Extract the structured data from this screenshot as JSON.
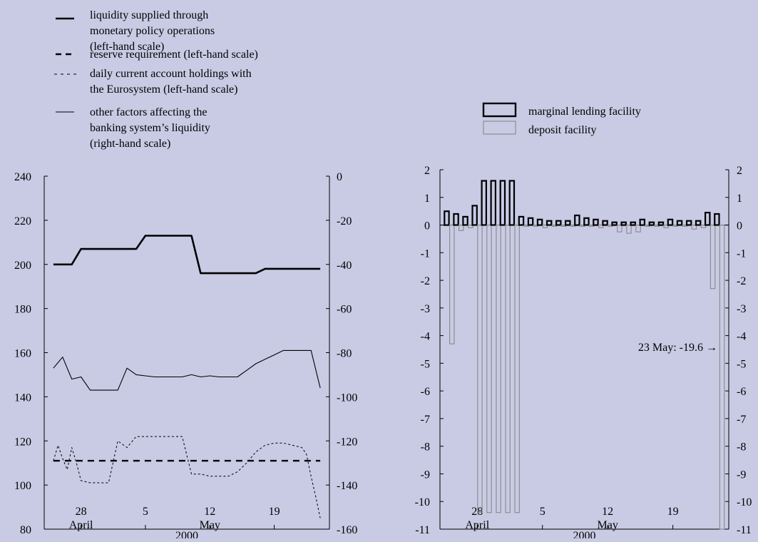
{
  "chart_data": [
    {
      "type": "line",
      "title": "",
      "legend_placement": "top-left",
      "grid": false,
      "x_axis": {
        "ticks": [
          {
            "day": 28,
            "label": "28"
          },
          {
            "day": 35,
            "label": "5"
          },
          {
            "day": 42,
            "label": "12"
          },
          {
            "day": 49,
            "label": "19"
          }
        ],
        "month_labels": [
          {
            "day": 28,
            "label": "April"
          },
          {
            "day": 42,
            "label": "May"
          }
        ],
        "year_label": "2000",
        "xlim": [
          24,
          55
        ]
      },
      "left_axis": {
        "ylim": [
          80,
          240
        ],
        "ticks": [
          240,
          220,
          200,
          180,
          160,
          140,
          120,
          100,
          80
        ]
      },
      "right_axis": {
        "ylim": [
          -160,
          0
        ],
        "ticks": [
          0,
          -20,
          -40,
          -60,
          -80,
          -100,
          -120,
          -140,
          -160
        ]
      },
      "series": [
        {
          "name": "liquidity supplied through monetary policy operations (left-hand scale)",
          "style": "thick",
          "axis": "left",
          "x": [
            25,
            26,
            27,
            28,
            29,
            30,
            31,
            32,
            33,
            34,
            35,
            36,
            37,
            38,
            39,
            40,
            41,
            42,
            43,
            44,
            45,
            46,
            47,
            48,
            49,
            50,
            51,
            52,
            53,
            54
          ],
          "y": [
            200,
            200,
            200,
            207,
            207,
            207,
            207,
            207,
            207,
            207,
            213,
            213,
            213,
            213,
            213,
            213,
            196,
            196,
            196,
            196,
            196,
            196,
            196,
            198,
            198,
            198,
            198,
            198,
            198,
            198
          ]
        },
        {
          "name": "reserve requirement (left-hand scale)",
          "style": "dashed",
          "axis": "left",
          "x": [
            25,
            54
          ],
          "y": [
            111,
            111
          ]
        },
        {
          "name": "daily current account holdings with the Eurosystem (left-hand scale)",
          "style": "dotted",
          "axis": "left",
          "x": [
            25,
            25.5,
            26,
            26.5,
            27,
            27.5,
            28,
            29,
            30,
            31,
            32,
            33,
            34,
            35,
            36,
            37,
            38,
            39,
            40,
            41,
            42,
            43,
            44,
            45,
            46,
            47,
            48,
            49,
            50,
            51,
            52,
            52.5,
            53,
            53.5,
            54
          ],
          "y": [
            111,
            118,
            112,
            107,
            117,
            110,
            102,
            101,
            101,
            101,
            120,
            117,
            122,
            122,
            122,
            122,
            122,
            122,
            105,
            105,
            104,
            104,
            104,
            106,
            110,
            115,
            118,
            119,
            119,
            118,
            117,
            114,
            104,
            95,
            85
          ]
        },
        {
          "name": "other factors affecting the banking system’s liquidity (right-hand scale)",
          "style": "thin",
          "axis": "right",
          "x": [
            25,
            26,
            27,
            28,
            29,
            30,
            31,
            32,
            33,
            34,
            35,
            36,
            37,
            38,
            39,
            40,
            41,
            42,
            43,
            44,
            45,
            46,
            47,
            48,
            49,
            50,
            51,
            52,
            53,
            54
          ],
          "y": [
            -87,
            -82,
            -92,
            -91,
            -97,
            -97,
            -97,
            -97,
            -87,
            -90,
            -90.5,
            -91,
            -91,
            -91,
            -91,
            -90,
            -91,
            -90.5,
            -91,
            -91,
            -91,
            -88,
            -85,
            -83,
            -81,
            -79,
            -79,
            -79,
            -79,
            -96
          ]
        }
      ]
    },
    {
      "type": "bar",
      "title": "",
      "legend_placement": "top-right",
      "grid": false,
      "x_axis": {
        "ticks": [
          {
            "day": 28,
            "label": "28"
          },
          {
            "day": 35,
            "label": "5"
          },
          {
            "day": 42,
            "label": "12"
          },
          {
            "day": 49,
            "label": "19"
          }
        ],
        "month_labels": [
          {
            "day": 28,
            "label": "April"
          },
          {
            "day": 42,
            "label": "May"
          }
        ],
        "year_label": "2000",
        "xlim": [
          24,
          55
        ]
      },
      "ylim": [
        -11,
        2
      ],
      "y_ticks_left": [
        "2",
        "1",
        "0",
        "-1",
        "-2",
        "-3",
        "-4",
        "-5",
        "-6",
        "-7",
        "-8",
        "-9",
        "-10",
        "-11"
      ],
      "y_ticks_right": [
        "2",
        "1",
        "0",
        "-1",
        "-2",
        "-3",
        "-4",
        "-5",
        "-6",
        "-7",
        "-8",
        "-9",
        "-10",
        "-11"
      ],
      "annotation": {
        "text": "23 May: -19.6   →",
        "y": -4.4
      },
      "days": [
        25,
        26,
        27,
        28,
        29,
        30,
        31,
        32,
        33,
        34,
        35,
        36,
        37,
        38,
        39,
        40,
        41,
        42,
        43,
        44,
        45,
        46,
        47,
        48,
        49,
        50,
        51,
        52,
        53,
        54
      ],
      "series": [
        {
          "name": "marginal lending facility",
          "style": "thick-outline",
          "values": [
            0.5,
            0.4,
            0.3,
            0.7,
            1.6,
            1.6,
            1.6,
            1.6,
            0.3,
            0.25,
            0.2,
            0.15,
            0.15,
            0.15,
            0.35,
            0.25,
            0.2,
            0.15,
            0.1,
            0.1,
            0.1,
            0.2,
            0.1,
            0.1,
            0.2,
            0.15,
            0.15,
            0.15,
            0.45,
            0.4
          ]
        },
        {
          "name": "deposit facility",
          "style": "thin-outline",
          "values": [
            -4.3,
            -0.2,
            -0.1,
            -10.4,
            -10.4,
            -10.4,
            -10.4,
            -10.4,
            -0.05,
            -0.05,
            -0.1,
            -0.05,
            -0.05,
            -0.05,
            -0.05,
            -0.05,
            -0.1,
            -0.05,
            -0.25,
            -0.3,
            -0.25,
            -0.05,
            -0.05,
            -0.1,
            -0.05,
            -0.05,
            -0.15,
            -0.1,
            -2.3,
            -19.6
          ]
        }
      ]
    }
  ],
  "colors": {
    "background": "#c9cbe5",
    "ink": "#000000",
    "deposit_outline": "#8e8e8e"
  }
}
